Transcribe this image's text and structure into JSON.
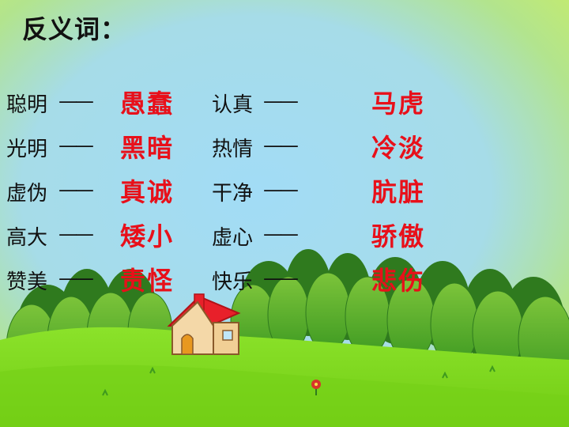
{
  "title": "反义词：",
  "dash": "——",
  "pairs_left": [
    {
      "word": "聪明",
      "antonym": "愚蠢"
    },
    {
      "word": "光明",
      "antonym": "黑暗"
    },
    {
      "word": "虚伪",
      "antonym": "真诚"
    },
    {
      "word": "高大",
      "antonym": "矮小"
    },
    {
      "word": "赞美",
      "antonym": "责怪"
    }
  ],
  "pairs_right": [
    {
      "word": "认真",
      "antonym": "马虎"
    },
    {
      "word": "热情",
      "antonym": "冷淡"
    },
    {
      "word": "干净",
      "antonym": "肮脏"
    },
    {
      "word": "虚心",
      "antonym": "骄傲"
    },
    {
      "word": "快乐",
      "antonym": "悲伤"
    }
  ],
  "colors": {
    "sky_top": "#b5e48c",
    "sky_center": "#9fd8f0",
    "grass": "#7ed321",
    "antonym_text": "#e8101a",
    "roof": "#e8202a"
  },
  "icons": {
    "scene": "cartoon-house-on-hill-with-trees"
  }
}
